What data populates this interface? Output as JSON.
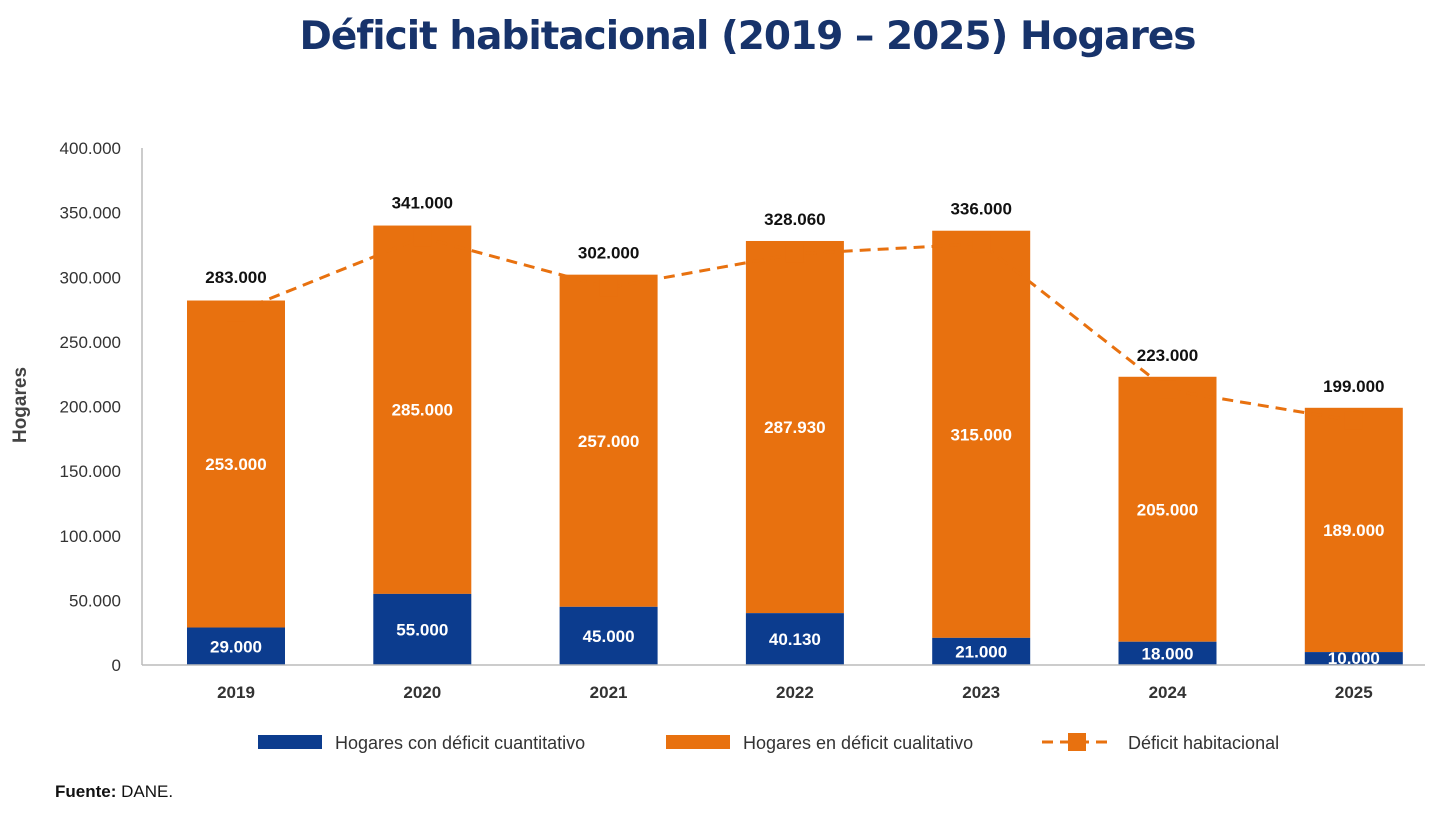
{
  "colors": {
    "title": "#17336b",
    "quantitative": "#0c3c8e",
    "qualitative": "#e8710f",
    "line": "#e8710f",
    "axis": "#bbbbbb"
  },
  "chart_data": {
    "type": "bar",
    "stacked": true,
    "title": "Déficit habitacional (2019 – 2025) Hogares",
    "ylabel": "Hogares",
    "xlabel": "",
    "ylim": [
      0,
      400000
    ],
    "yticks": [
      "0",
      "50.000",
      "100.000",
      "150.000",
      "200.000",
      "250.000",
      "300.000",
      "350.000",
      "400.000"
    ],
    "categories": [
      "2019",
      "2020",
      "2021",
      "2022",
      "2023",
      "2024",
      "2025"
    ],
    "series": [
      {
        "name": "Hogares con déficit cuantitativo",
        "kind": "bar",
        "values": [
          29000,
          55000,
          45000,
          40130,
          21000,
          18000,
          10000
        ],
        "labels": [
          "29.000",
          "55.000",
          "45.000",
          "40.130",
          "21.000",
          "18.000",
          "10.000"
        ]
      },
      {
        "name": "Hogares en déficit cualitativo",
        "kind": "bar",
        "values": [
          253000,
          285000,
          257000,
          287930,
          315000,
          205000,
          189000
        ],
        "labels": [
          "253.000",
          "285.000",
          "257.000",
          "287.930",
          "315.000",
          "205.000",
          "189.000"
        ]
      },
      {
        "name": "Déficit habitacional",
        "kind": "line",
        "style": "dashed",
        "values": [
          283000,
          341000,
          302000,
          328060,
          336000,
          223000,
          199000
        ],
        "labels": [
          "283.000",
          "341.000",
          "302.000",
          "328.060",
          "336.000",
          "223.000",
          "199.000"
        ]
      }
    ],
    "grid": false,
    "legend_position": "bottom"
  },
  "source": {
    "label": "Fuente:",
    "text": " DANE."
  }
}
